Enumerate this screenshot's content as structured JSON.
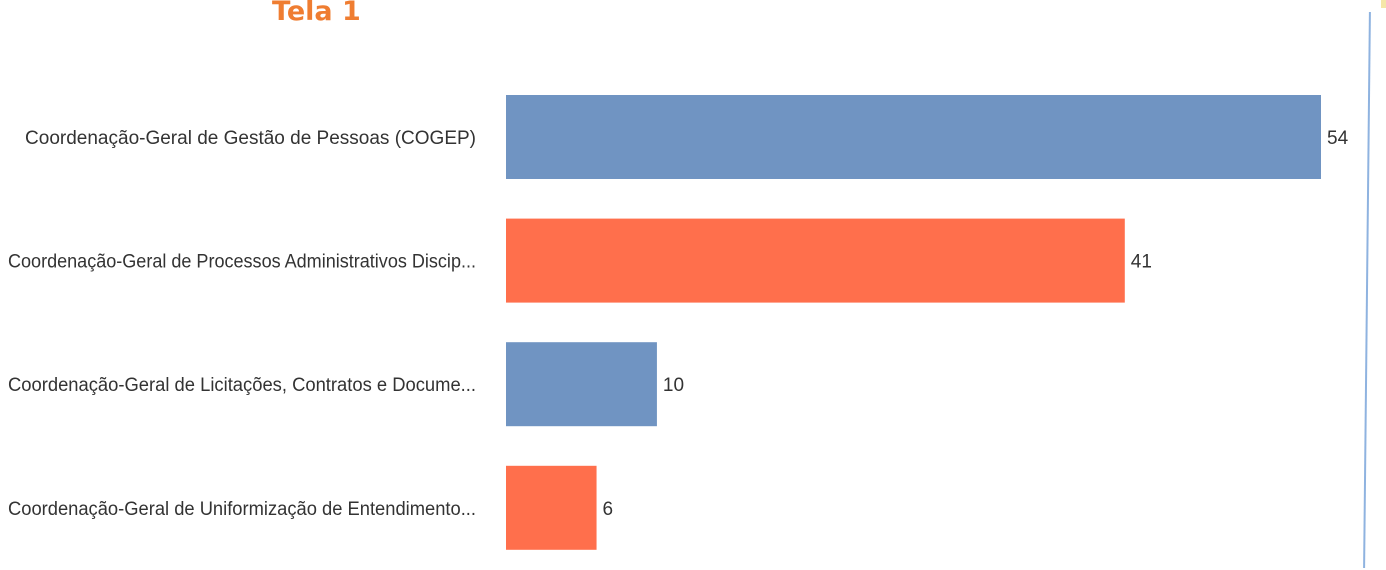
{
  "heading": "Tela 1",
  "colors": {
    "heading": "#ef7d31",
    "series_a": "#7094c2",
    "series_b": "#ff6f4c",
    "text": "#333333"
  },
  "chart_data": {
    "type": "bar",
    "orientation": "horizontal",
    "categories": [
      "Coordenação-Geral de Gestão de Pessoas (COGEP)",
      "Coordenação-Geral de Processos Administrativos Discip...",
      "Coordenação-Geral de Licitações, Contratos e Docume...",
      "Coordenação-Geral de Uniformização de Entendimento..."
    ],
    "values": [
      54,
      41,
      10,
      6
    ],
    "bar_colors": [
      "#7094c2",
      "#ff6f4c",
      "#7094c2",
      "#ff6f4c"
    ],
    "data_labels": [
      "54",
      "41",
      "10",
      "6"
    ],
    "xlim": [
      0,
      54
    ],
    "grid": false,
    "legend": "none",
    "title": "",
    "xlabel": "",
    "ylabel": ""
  }
}
